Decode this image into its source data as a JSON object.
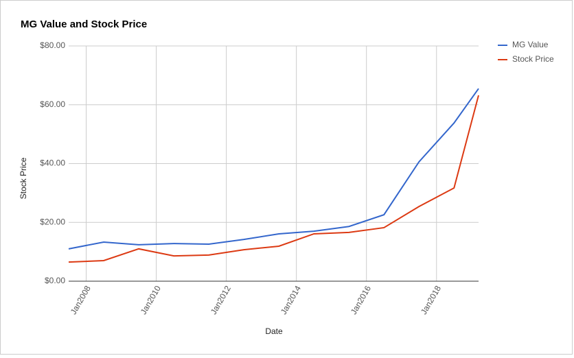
{
  "chart_data": {
    "type": "line",
    "title": "MG Value and Stock Price",
    "x_label": "Date",
    "y_label": "Stock Price",
    "x": [
      2007.5,
      2008.5,
      2009.5,
      2010.5,
      2011.5,
      2012.5,
      2013.5,
      2014.5,
      2015.5,
      2016.5,
      2017.5,
      2018.5,
      2019.2
    ],
    "series": [
      {
        "name": "MG Value",
        "color": "#3366cc",
        "values": [
          11.0,
          13.3,
          12.4,
          12.8,
          12.6,
          14.2,
          16.1,
          17.0,
          18.6,
          22.6,
          40.6,
          53.8,
          65.5
        ]
      },
      {
        "name": "Stock Price",
        "color": "#dc3912",
        "values": [
          6.5,
          7.0,
          11.0,
          8.6,
          8.9,
          10.7,
          11.9,
          16.1,
          16.6,
          18.2,
          25.4,
          31.7,
          63.2
        ]
      }
    ],
    "xlim": [
      2007.5,
      2019.2
    ],
    "xticks": [
      {
        "value": 2008,
        "label": "Jan2008"
      },
      {
        "value": 2010,
        "label": "Jan2010"
      },
      {
        "value": 2012,
        "label": "Jan2012"
      },
      {
        "value": 2014,
        "label": "Jan2014"
      },
      {
        "value": 2016,
        "label": "Jan2016"
      },
      {
        "value": 2018,
        "label": "Jan2018"
      }
    ],
    "ylim": [
      0,
      80
    ],
    "yticks": [
      {
        "value": 0,
        "label": "$0.00"
      },
      {
        "value": 20,
        "label": "$20.00"
      },
      {
        "value": 40,
        "label": "$40.00"
      },
      {
        "value": 60,
        "label": "$60.00"
      },
      {
        "value": 80,
        "label": "$80.00"
      }
    ],
    "grid": true,
    "legend": "right"
  }
}
